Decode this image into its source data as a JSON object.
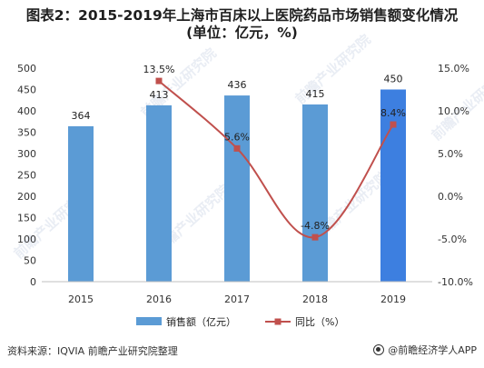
{
  "title_line1": "图表2：2015-2019年上海市百床以上医院药品市场销售额变化情况",
  "title_line2": "(单位：亿元，%)",
  "source_text": "资料来源：IQVIA 前瞻产业研究院整理",
  "brand_text": "@前瞻经济学人APP",
  "watermark_text": "前瞻产业研究院",
  "colors": {
    "bar": "#5b9bd5",
    "bar_last": "#3d7fe0",
    "line": "#c0504d",
    "axis_text": "#333333",
    "grid": "#e6e6e6"
  },
  "chart_data": {
    "type": "bar+line",
    "categories": [
      "2015",
      "2016",
      "2017",
      "2018",
      "2019"
    ],
    "series": [
      {
        "name": "销售额（亿元）",
        "type": "bar",
        "axis": "left",
        "values": [
          364,
          413,
          436,
          415,
          450
        ],
        "labels": [
          "364",
          "413",
          "436",
          "415",
          "450"
        ]
      },
      {
        "name": "同比（%）",
        "type": "line",
        "axis": "right",
        "values": [
          null,
          13.5,
          5.6,
          -4.8,
          8.4
        ],
        "labels": [
          "",
          "13.5%",
          "5.6%",
          "-4.8%",
          "8.4%"
        ]
      }
    ],
    "y_left": {
      "min": 0,
      "max": 500,
      "ticks": [
        "0",
        "50",
        "100",
        "150",
        "200",
        "250",
        "300",
        "350",
        "400",
        "450",
        "500"
      ]
    },
    "y_right": {
      "min": -10,
      "max": 15,
      "ticks": [
        "-10.0%",
        "-5.0%",
        "0.0%",
        "5.0%",
        "10.0%",
        "15.0%"
      ]
    },
    "legend_position": "bottom"
  }
}
